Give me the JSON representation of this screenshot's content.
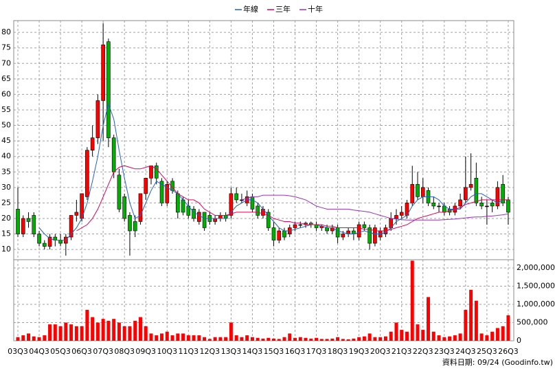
{
  "chart_data": {
    "type": "candlestick",
    "categories": [
      "03Q3",
      null,
      null,
      null,
      "04Q3",
      null,
      null,
      null,
      "05Q3",
      null,
      null,
      null,
      "06Q3",
      null,
      null,
      null,
      "07Q3",
      null,
      null,
      null,
      "08Q3",
      null,
      null,
      null,
      "09Q3",
      null,
      null,
      null,
      "10Q3",
      null,
      null,
      null,
      "11Q3",
      null,
      null,
      null,
      "12Q3",
      null,
      null,
      null,
      "13Q3",
      null,
      null,
      null,
      "14Q3",
      null,
      null,
      null,
      "15Q3",
      null,
      null,
      null,
      "16Q3",
      null,
      null,
      null,
      "17Q3",
      null,
      null,
      null,
      "18Q3",
      null,
      null,
      null,
      "19Q3",
      null,
      null,
      null,
      "20Q3",
      null,
      null,
      null,
      "21Q3",
      null,
      null,
      null,
      "22Q3",
      null,
      null,
      null,
      "23Q3",
      null,
      null,
      null,
      "24Q3",
      null,
      null,
      null,
      "25Q3",
      null,
      null,
      null,
      "26Q3"
    ],
    "open": [
      23,
      15,
      20,
      21,
      15,
      12,
      11,
      14,
      13,
      12,
      14,
      21,
      20,
      27,
      42,
      46,
      58,
      77,
      46,
      34,
      27,
      21,
      19,
      19,
      28,
      33,
      37,
      32,
      25,
      32,
      28,
      26,
      24,
      23,
      19,
      22,
      21,
      19,
      20,
      21,
      21,
      28,
      26,
      25,
      27,
      24,
      21,
      22,
      17,
      13,
      16,
      15,
      17,
      18,
      18,
      18.5,
      18,
      17,
      17,
      16,
      17,
      14,
      15,
      16,
      14,
      18,
      17,
      12,
      14,
      15,
      17,
      20,
      21,
      21,
      25,
      31,
      27,
      29,
      25,
      24,
      24,
      23,
      22,
      24,
      26,
      30,
      33,
      25,
      24,
      25,
      24,
      31,
      26
    ],
    "high": [
      30,
      21,
      22,
      22,
      16,
      13,
      15,
      15,
      15,
      15,
      21,
      26,
      28,
      43,
      50,
      60,
      83,
      78,
      47,
      36,
      28,
      22,
      21,
      28,
      33,
      37,
      38,
      33,
      32,
      33,
      29,
      27,
      26,
      24,
      23,
      22,
      22,
      21,
      22,
      22,
      30,
      30,
      28,
      29,
      28,
      25,
      24,
      23,
      19,
      17,
      17,
      18,
      19,
      19,
      19,
      19,
      19,
      18,
      18,
      18,
      18,
      16,
      17,
      17,
      19,
      19,
      18,
      18,
      17,
      18,
      22,
      23,
      24,
      26,
      37,
      35,
      33,
      30,
      27,
      25,
      25,
      24,
      25,
      28,
      40,
      41,
      38,
      27,
      26,
      26,
      32,
      34,
      27
    ],
    "low": [
      14,
      14,
      17,
      14,
      11,
      10,
      10,
      11,
      11,
      8,
      13,
      19,
      19,
      26,
      40,
      44,
      45,
      43,
      33,
      22,
      19,
      8,
      14,
      18,
      26,
      31,
      31,
      24,
      24,
      28,
      20,
      21,
      20,
      19,
      18,
      16,
      18,
      18,
      19,
      19,
      20,
      25,
      25,
      24,
      22,
      20,
      20,
      16,
      11,
      12,
      13,
      14,
      16,
      17,
      17,
      17,
      16,
      16,
      15,
      15,
      12,
      13,
      14,
      13,
      13,
      16,
      10,
      11,
      13,
      14,
      16,
      18,
      20,
      20,
      24,
      26,
      25,
      24,
      23,
      22,
      21,
      21,
      21,
      23,
      25,
      29,
      24,
      23,
      18,
      22,
      23,
      24,
      18
    ],
    "close": [
      15,
      20,
      19,
      15,
      12,
      11,
      14,
      13,
      12,
      14,
      21,
      22,
      28,
      42,
      46,
      58,
      76,
      46,
      35,
      23,
      20,
      16,
      16,
      28,
      33,
      37,
      33,
      25,
      31,
      29,
      22,
      22,
      21,
      20,
      22,
      17,
      19,
      20,
      21,
      20,
      28,
      26,
      26,
      27,
      23,
      21,
      23,
      17,
      13,
      16,
      14,
      17,
      18,
      18,
      18.5,
      18,
      17,
      17.5,
      16,
      17,
      14,
      15,
      16,
      15,
      18,
      17,
      12,
      17,
      16,
      17,
      20,
      21,
      22,
      25,
      31,
      27,
      30,
      25,
      24,
      24,
      22,
      22,
      24,
      26,
      30,
      31,
      25,
      24,
      24,
      24,
      30,
      25,
      22
    ],
    "up_color": "#ff0000",
    "down_color": "#00b000",
    "series": [
      {
        "name": "年線",
        "color": "#1f5fd0",
        "values": [
          null,
          null,
          null,
          null,
          17,
          15,
          13.5,
          13,
          13,
          13,
          15,
          17,
          20,
          25,
          32,
          40,
          50,
          57,
          52,
          42,
          33,
          25,
          20,
          21,
          25,
          29,
          32,
          31,
          30,
          29,
          28,
          26,
          24,
          22,
          21,
          20,
          20,
          20,
          20,
          20,
          22,
          24,
          25,
          26,
          26,
          25,
          23,
          21,
          19,
          17,
          16,
          16,
          16.5,
          17,
          17.5,
          18,
          18,
          17.5,
          17,
          17,
          16,
          15.5,
          15,
          15,
          15.5,
          16,
          15.5,
          15,
          15,
          15.5,
          17,
          19,
          20,
          21,
          24,
          26,
          27,
          27,
          27,
          26,
          24,
          23,
          23,
          23,
          25,
          27,
          28,
          28,
          27,
          26,
          25,
          26,
          26
        ]
      },
      {
        "name": "三年",
        "color": "#e0005a",
        "values": [
          null,
          null,
          null,
          null,
          null,
          null,
          null,
          null,
          null,
          null,
          null,
          16,
          17,
          18,
          20,
          23,
          27,
          31,
          35,
          36.5,
          37,
          36.5,
          36,
          36,
          36.5,
          37,
          36,
          34,
          32,
          30,
          28,
          27,
          26,
          26,
          25,
          23,
          22,
          21,
          21,
          21,
          21.5,
          22,
          22,
          22,
          22,
          22,
          21.5,
          21,
          20,
          19.5,
          19,
          19,
          18.5,
          18.5,
          18,
          18,
          18,
          18,
          17.5,
          17.5,
          17,
          17,
          17,
          17,
          17,
          16.5,
          16.5,
          16,
          16,
          16,
          16.5,
          17,
          17.5,
          18,
          19,
          20,
          20.5,
          21,
          21.5,
          22,
          22,
          22.5,
          23,
          23.5,
          24.5,
          25,
          25.5,
          26,
          26,
          26,
          26,
          26,
          26
        ]
      },
      {
        "name": "十年",
        "color": "#9b30c0",
        "values": [
          null,
          null,
          null,
          null,
          null,
          null,
          null,
          null,
          null,
          null,
          null,
          null,
          null,
          null,
          null,
          null,
          null,
          null,
          null,
          null,
          null,
          null,
          null,
          null,
          null,
          null,
          null,
          null,
          null,
          null,
          null,
          null,
          null,
          null,
          null,
          null,
          null,
          null,
          null,
          null,
          null,
          null,
          26,
          26.5,
          27,
          27,
          27.5,
          27.5,
          27.5,
          27.5,
          27.5,
          27.3,
          27,
          26.5,
          26,
          25,
          24,
          23.5,
          23,
          23,
          23,
          23,
          23,
          22.7,
          22.5,
          22.3,
          22,
          21.5,
          21,
          20.5,
          20,
          19.8,
          19.6,
          19.5,
          19.5,
          19.5,
          19.5,
          19.5,
          19.5,
          19.5,
          19.6,
          19.7,
          19.8,
          20,
          20.2,
          20.4,
          20.5,
          20.5,
          20.7,
          20.8,
          21,
          21.2,
          21.5
        ]
      }
    ],
    "ylim": [
      6.7,
      83.8
    ],
    "yticks": [
      10,
      15,
      20,
      25,
      30,
      35,
      40,
      45,
      50,
      55,
      60,
      65,
      70,
      75,
      80
    ],
    "volume": {
      "color": "#ff0000",
      "values": [
        100000,
        150000,
        200000,
        120000,
        100000,
        150000,
        450000,
        450000,
        400000,
        500000,
        450000,
        400000,
        400000,
        850000,
        650000,
        500000,
        600000,
        550000,
        600000,
        500000,
        400000,
        400000,
        550000,
        650000,
        400000,
        200000,
        150000,
        200000,
        250000,
        150000,
        200000,
        200000,
        150000,
        150000,
        150000,
        100000,
        50000,
        100000,
        100000,
        100000,
        500000,
        150000,
        100000,
        150000,
        100000,
        80000,
        60000,
        80000,
        60000,
        50000,
        100000,
        200000,
        80000,
        100000,
        80000,
        60000,
        80000,
        50000,
        50000,
        60000,
        100000,
        50000,
        40000,
        60000,
        100000,
        120000,
        200000,
        100000,
        100000,
        120000,
        250000,
        500000,
        300000,
        250000,
        2200000,
        450000,
        300000,
        1200000,
        250000,
        150000,
        100000,
        120000,
        150000,
        200000,
        850000,
        1400000,
        1100000,
        200000,
        150000,
        250000,
        350000,
        400000,
        700000
      ],
      "y2lim": [
        0,
        2226000
      ],
      "y2ticks": [
        0,
        {
          "value": 500000,
          "label": "500,000"
        },
        {
          "value": 1000000,
          "label": "1,000,000"
        },
        {
          "value": 1500000,
          "label": "1,500,000"
        },
        {
          "value": 2000000,
          "label": "2,000,000"
        }
      ]
    },
    "grid": true,
    "legend": "top",
    "footer": "資料日期: 09/24  (Goodinfo.tw)"
  }
}
